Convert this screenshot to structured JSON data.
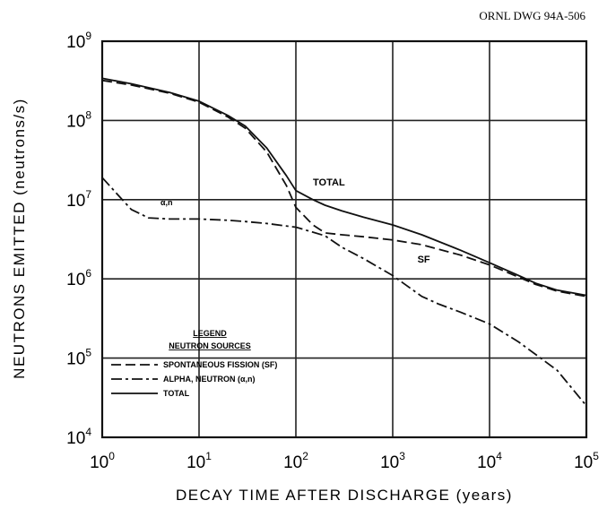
{
  "drawing_number": "ORNL DWG 94A-506",
  "chart_data": {
    "type": "line",
    "title": "",
    "xlabel": "DECAY TIME AFTER DISCHARGE (years)",
    "ylabel": "NEUTRONS EMITTED (neutrons/s)",
    "x_scale": "log",
    "y_scale": "log",
    "xlim": [
      1,
      100000
    ],
    "ylim": [
      10000,
      1000000000
    ],
    "grid": true,
    "x_ticks": [
      {
        "base": "10",
        "exp": "0"
      },
      {
        "base": "10",
        "exp": "1"
      },
      {
        "base": "10",
        "exp": "2"
      },
      {
        "base": "10",
        "exp": "3"
      },
      {
        "base": "10",
        "exp": "4"
      },
      {
        "base": "10",
        "exp": "5"
      }
    ],
    "y_ticks": [
      {
        "base": "10",
        "exp": "4"
      },
      {
        "base": "10",
        "exp": "5"
      },
      {
        "base": "10",
        "exp": "6"
      },
      {
        "base": "10",
        "exp": "7"
      },
      {
        "base": "10",
        "exp": "8"
      },
      {
        "base": "10",
        "exp": "9"
      }
    ],
    "series": [
      {
        "name": "SPONTANEOUS FISSION (SF)",
        "style": "dashed",
        "x": [
          1,
          2,
          5,
          10,
          20,
          30,
          50,
          80,
          100,
          150,
          200,
          300,
          500,
          1000,
          2000,
          5000,
          10000,
          20000,
          30000,
          50000,
          100000
        ],
        "y": [
          320000000,
          280000000,
          220000000,
          170000000,
          110000000,
          80000000,
          40000000,
          15000000,
          8000000,
          4800000,
          3800000,
          3600000,
          3400000,
          3100000,
          2700000,
          2000000,
          1500000,
          1050000,
          850000,
          700000,
          600000
        ]
      },
      {
        "name": "ALPHA, NEUTRON (α,n)",
        "style": "dash-dot",
        "x": [
          1,
          1.5,
          2,
          3,
          5,
          10,
          20,
          30,
          50,
          100,
          200,
          300,
          500,
          1000,
          2000,
          3000,
          5000,
          10000,
          20000,
          50000,
          100000
        ],
        "y": [
          19000000,
          11000000,
          7500000,
          5900000,
          5700000,
          5700000,
          5500000,
          5300000,
          5000000,
          4500000,
          3500000,
          2500000,
          1800000,
          1100000,
          600000,
          480000,
          380000,
          270000,
          160000,
          70000,
          25000
        ]
      },
      {
        "name": "TOTAL",
        "style": "solid",
        "x": [
          1,
          2,
          5,
          10,
          20,
          30,
          50,
          80,
          100,
          150,
          200,
          300,
          500,
          1000,
          2000,
          5000,
          10000,
          20000,
          30000,
          50000,
          100000
        ],
        "y": [
          340000000,
          290000000,
          225000000,
          175000000,
          115000000,
          85000000,
          45000000,
          20000000,
          13000000,
          10000000,
          8500000,
          7200000,
          6000000,
          4800000,
          3600000,
          2300000,
          1600000,
          1100000,
          880000,
          720000,
          620000
        ]
      }
    ],
    "annotations": [
      {
        "text": "TOTAL",
        "x": 150,
        "y": 15000000
      },
      {
        "text": "α,n",
        "x": 4,
        "y": 8500000
      },
      {
        "text": "SF",
        "x": 1800,
        "y": 1600000
      }
    ],
    "legend": {
      "position": "bottom-left",
      "title_line1": "LEGEND",
      "title_line2": "NEUTRON SOURCES",
      "items": [
        {
          "label": "SPONTANEOUS FISSION (SF)",
          "style": "dashed"
        },
        {
          "label": "ALPHA, NEUTRON (α,n)",
          "style": "dash-dot"
        },
        {
          "label": "TOTAL",
          "style": "solid"
        }
      ]
    }
  }
}
